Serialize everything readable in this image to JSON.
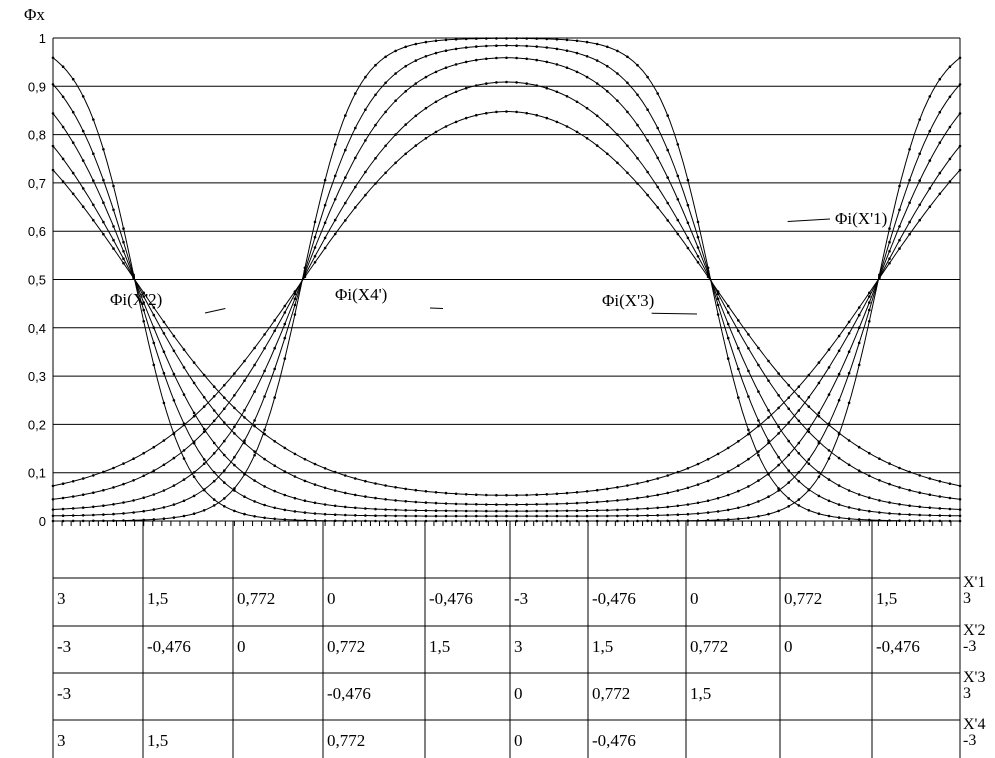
{
  "chart_data": {
    "type": "line",
    "ylabel": "Φx",
    "ylim": [
      0,
      1
    ],
    "y_ticks": [
      "0",
      "0,1",
      "0,2",
      "0,3",
      "0,4",
      "0,5",
      "0,6",
      "0,7",
      "0,8",
      "0,9",
      "1"
    ],
    "grid": true,
    "annotations": [
      {
        "text": "Φi(X'2)",
        "ref_x": 1.9,
        "ref_y": 0.44
      },
      {
        "text": "Φi(X4')",
        "ref_x": 4.3,
        "ref_y": 0.44
      },
      {
        "text": "Φi(X'3)",
        "ref_x": 6.6,
        "ref_y": 0.43
      },
      {
        "text": "Φi(X'1)",
        "ref_x": 8.1,
        "ref_y": 0.62
      }
    ],
    "families": [
      {
        "name": "Φi(X'1)",
        "shape": "valley",
        "slopes": [
          1.2,
          1.5,
          2.0,
          2.6,
          3.5
        ],
        "center": 5.0,
        "half_width": 4.1,
        "y_min": [
          0.04,
          0.03,
          0.02,
          0.01,
          0.0
        ],
        "y_max": [
          0.96,
          0.97,
          0.98,
          0.99,
          1.0
        ]
      },
      {
        "name": "Φi(X'2)",
        "shape": "hill",
        "slopes": [
          1.2,
          1.5,
          2.0,
          2.6,
          3.5
        ],
        "center": 5.0,
        "half_width": 2.25,
        "y_min": [
          0.04,
          0.03,
          0.02,
          0.01,
          0.0
        ],
        "y_max": [
          0.96,
          0.97,
          0.98,
          0.99,
          1.0
        ]
      }
    ],
    "table": {
      "header_rows": 1,
      "rows": [
        {
          "label": "X'1",
          "end": "3",
          "cells": [
            "3",
            "1,5",
            "0,772",
            "0",
            "-0,476",
            "-3",
            "-0,476",
            "0",
            "0,772",
            "1,5"
          ]
        },
        {
          "label": "X'2",
          "end": "-3",
          "cells": [
            "-3",
            "-0,476",
            "0",
            "0,772",
            "1,5",
            "3",
            "1,5",
            "0,772",
            "0",
            "-0,476"
          ]
        },
        {
          "label": "X'3",
          "end": "3",
          "cells": [
            "-3",
            "",
            "",
            "-0,476",
            "",
            "0",
            "0,772",
            "1,5",
            "",
            ""
          ]
        },
        {
          "label": "X'4",
          "end": "-3",
          "cells": [
            "3",
            "1,5",
            "",
            "0,772",
            "",
            "0",
            "-0,476",
            "",
            "",
            ""
          ]
        }
      ]
    }
  }
}
